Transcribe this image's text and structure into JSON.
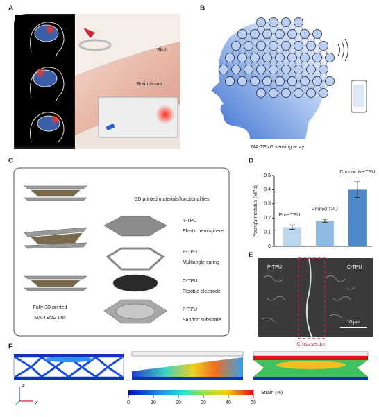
{
  "panel_labels": [
    "A",
    "B",
    "C",
    "D",
    "E",
    "F"
  ],
  "panel_a": {
    "skull": "Skull",
    "brain_tissue": "Brain tissue"
  },
  "panel_b": {
    "caption": "MA-TENG sensing array"
  },
  "panel_c": {
    "heading": "3D printed materials/functionalities",
    "layers": [
      {
        "material": "T-TPU",
        "function": "Elastic hemisphere"
      },
      {
        "material": "P-TPU",
        "function": "Multiangle spring"
      },
      {
        "material": "C-TPU",
        "function": "Flexible electrode"
      },
      {
        "material": "P-TPU",
        "function": "Support substrate"
      }
    ],
    "unit_caption": [
      "Fully 3D printed",
      "MA-TENG unit"
    ]
  },
  "chart_data": {
    "type": "bar",
    "ylabel": "Young's modulus (MPa)",
    "categories": [
      "Pure TPU",
      "Printed TPU",
      "Conductive TPU"
    ],
    "values": [
      0.135,
      0.18,
      0.4
    ],
    "errors": [
      0.015,
      0.012,
      0.055
    ],
    "colors": [
      "#bcd6ee",
      "#8db9e2",
      "#4d88c8"
    ],
    "ylim": [
      0,
      0.5
    ],
    "yticks": [
      0,
      0.1,
      0.2,
      0.3,
      0.4,
      0.5
    ]
  },
  "panel_e": {
    "left": "P-TPU",
    "right": "C-TPU",
    "scale": "10 μm",
    "section": "Cross section"
  },
  "panel_f": {
    "axis_z": "z",
    "axis_x": "x",
    "colorbar_label": "Strain (%)",
    "colorbar_lim": [
      0,
      50
    ],
    "colorbar_ticks": [
      0,
      10,
      20,
      30,
      40,
      50
    ]
  }
}
